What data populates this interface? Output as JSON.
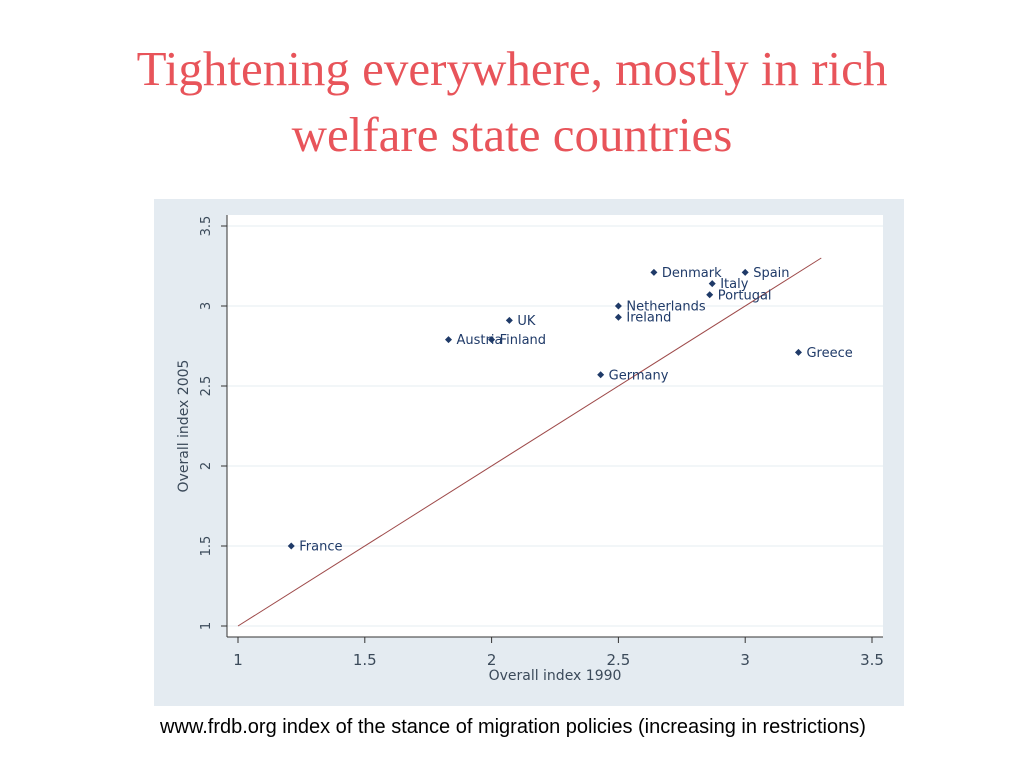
{
  "slide": {
    "title_line1": "Tightening everywhere, mostly in rich",
    "title_line2": "welfare state countries",
    "caption": "www.frdb.org index of the stance of migration policies (increasing in restrictions)"
  },
  "colors": {
    "title": "#e8545a",
    "frame_background": "#e4ebf1",
    "plot_background": "#ffffff",
    "gridline": "#e6ecf0",
    "marker": "#1f3a68",
    "label": "#1f3a68",
    "diagonal_line": "#9e4a4a"
  },
  "chart_data": {
    "type": "scatter",
    "title": "",
    "xlabel": "Overall index 1990",
    "ylabel": "Overall index 2005",
    "xlim": [
      1,
      3.5
    ],
    "ylim": [
      1,
      3.5
    ],
    "x_ticks": [
      "1",
      "1.5",
      "2",
      "2.5",
      "3",
      "3.5"
    ],
    "y_ticks": [
      "1",
      "1.5",
      "2",
      "2.5",
      "3",
      "3.5"
    ],
    "grid": "horizontal",
    "legend": "none",
    "reference_line": {
      "from": [
        1,
        1
      ],
      "to": [
        3.3,
        3.3
      ]
    },
    "points": [
      {
        "label": "France",
        "x": 1.21,
        "y": 1.5
      },
      {
        "label": "Austria",
        "x": 1.83,
        "y": 2.79
      },
      {
        "label": "Finland",
        "x": 2.0,
        "y": 2.79
      },
      {
        "label": "UK",
        "x": 2.07,
        "y": 2.91
      },
      {
        "label": "Germany",
        "x": 2.43,
        "y": 2.57
      },
      {
        "label": "Netherlands",
        "x": 2.5,
        "y": 3.0
      },
      {
        "label": "Ireland",
        "x": 2.5,
        "y": 2.93
      },
      {
        "label": "Denmark",
        "x": 2.64,
        "y": 3.21
      },
      {
        "label": "Italy",
        "x": 2.87,
        "y": 3.14
      },
      {
        "label": "Portugal",
        "x": 2.86,
        "y": 3.07
      },
      {
        "label": "Spain",
        "x": 3.0,
        "y": 3.21
      },
      {
        "label": "Greece",
        "x": 3.21,
        "y": 2.71
      }
    ]
  }
}
